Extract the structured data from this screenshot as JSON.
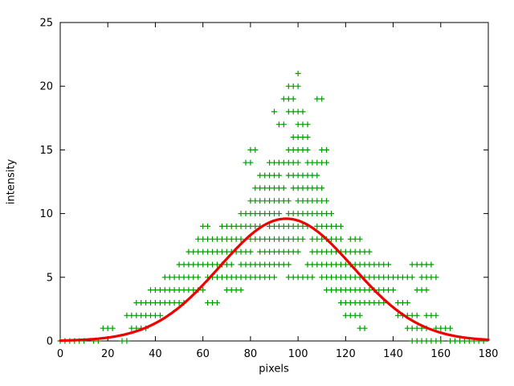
{
  "chart_data": {
    "type": "scatter",
    "title": "",
    "xlabel": "pixels",
    "ylabel": "intensity",
    "xlim": [
      0,
      180
    ],
    "ylim": [
      0,
      25
    ],
    "x_ticks": [
      0,
      20,
      40,
      60,
      80,
      100,
      120,
      140,
      160,
      180
    ],
    "y_ticks": [
      0,
      5,
      10,
      15,
      20,
      25
    ],
    "grid": false,
    "legend": "none",
    "background": "#ffffff",
    "border_color": "#000000",
    "series": [
      {
        "name": "measured-intensity-points",
        "type": "points",
        "marker": "plus",
        "color": "#009a00",
        "marker_px": 7,
        "x_step": 2,
        "rows": [
          {
            "y": 0,
            "runs": [
              [
                0,
                10
              ],
              [
                14,
                16
              ],
              [
                26,
                28
              ],
              [
                148,
                160
              ],
              [
                164,
                178
              ]
            ]
          },
          {
            "y": 1,
            "runs": [
              [
                18,
                22
              ],
              [
                30,
                36
              ],
              [
                126,
                128
              ],
              [
                146,
                154
              ],
              [
                158,
                164
              ]
            ]
          },
          {
            "y": 2,
            "runs": [
              [
                28,
                42
              ],
              [
                120,
                126
              ],
              [
                142,
                150
              ],
              [
                154,
                158
              ]
            ]
          },
          {
            "y": 3,
            "runs": [
              [
                32,
                52
              ],
              [
                62,
                66
              ],
              [
                118,
                136
              ],
              [
                142,
                146
              ]
            ]
          },
          {
            "y": 4,
            "runs": [
              [
                38,
                60
              ],
              [
                70,
                76
              ],
              [
                112,
                140
              ],
              [
                150,
                154
              ]
            ]
          },
          {
            "y": 5,
            "runs": [
              [
                44,
                58
              ],
              [
                62,
                90
              ],
              [
                96,
                106
              ],
              [
                110,
                148
              ],
              [
                152,
                158
              ]
            ]
          },
          {
            "y": 6,
            "runs": [
              [
                50,
                72
              ],
              [
                76,
                96
              ],
              [
                104,
                138
              ],
              [
                148,
                156
              ]
            ]
          },
          {
            "y": 7,
            "runs": [
              [
                54,
                80
              ],
              [
                84,
                100
              ],
              [
                106,
                130
              ]
            ]
          },
          {
            "y": 8,
            "runs": [
              [
                58,
                76
              ],
              [
                80,
                102
              ],
              [
                106,
                118
              ],
              [
                122,
                126
              ]
            ]
          },
          {
            "y": 9,
            "runs": [
              [
                60,
                62
              ],
              [
                68,
                84
              ],
              [
                88,
                104
              ],
              [
                108,
                118
              ]
            ]
          },
          {
            "y": 10,
            "runs": [
              [
                76,
                92
              ],
              [
                96,
                114
              ]
            ]
          },
          {
            "y": 11,
            "runs": [
              [
                80,
                96
              ],
              [
                100,
                112
              ]
            ]
          },
          {
            "y": 12,
            "runs": [
              [
                82,
                94
              ],
              [
                98,
                110
              ]
            ]
          },
          {
            "y": 13,
            "runs": [
              [
                84,
                92
              ],
              [
                96,
                108
              ]
            ]
          },
          {
            "y": 14,
            "runs": [
              [
                78,
                80
              ],
              [
                88,
                100
              ],
              [
                104,
                112
              ]
            ]
          },
          {
            "y": 15,
            "runs": [
              [
                80,
                82
              ],
              [
                96,
                104
              ],
              [
                110,
                112
              ]
            ]
          },
          {
            "y": 16,
            "runs": [
              [
                98,
                104
              ]
            ]
          },
          {
            "y": 17,
            "runs": [
              [
                92,
                94
              ],
              [
                100,
                104
              ]
            ]
          },
          {
            "y": 18,
            "runs": [
              [
                90,
                90
              ],
              [
                96,
                102
              ]
            ]
          },
          {
            "y": 19,
            "runs": [
              [
                94,
                98
              ],
              [
                108,
                110
              ]
            ]
          },
          {
            "y": 20,
            "runs": [
              [
                96,
                100
              ]
            ]
          },
          {
            "y": 21,
            "runs": [
              [
                100,
                100
              ]
            ]
          }
        ]
      },
      {
        "name": "gaussian-fit-curve",
        "type": "gaussian",
        "color": "#ee0000",
        "linewidth": 3.2,
        "amplitude": 9.6,
        "mean": 95,
        "sigma": 28,
        "baseline": 0
      }
    ]
  }
}
